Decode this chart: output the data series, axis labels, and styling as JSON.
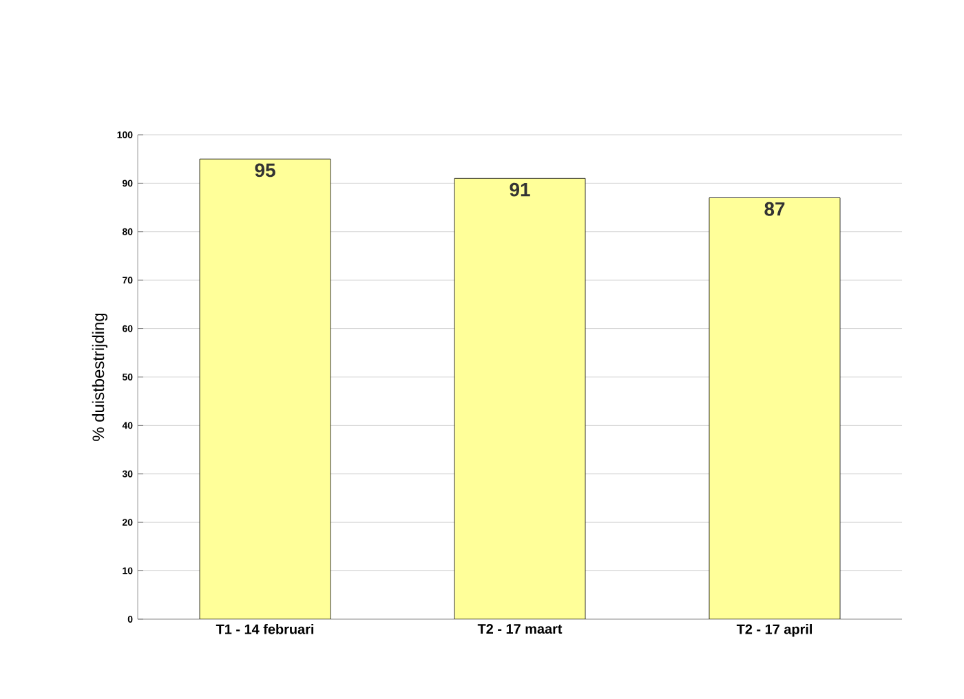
{
  "chart_data": {
    "type": "bar",
    "ylabel": "% duistbestrijding",
    "categories": [
      "T1 - 14 februari",
      "T2 - 17 maart",
      "T2 - 17 april"
    ],
    "values": [
      95,
      91,
      87
    ],
    "color": "#ffff99",
    "data_labels": true,
    "ylim": [
      0,
      100
    ],
    "yticks": [
      0,
      10,
      20,
      30,
      40,
      50,
      60,
      70,
      80,
      90,
      100
    ],
    "grid": "y"
  }
}
